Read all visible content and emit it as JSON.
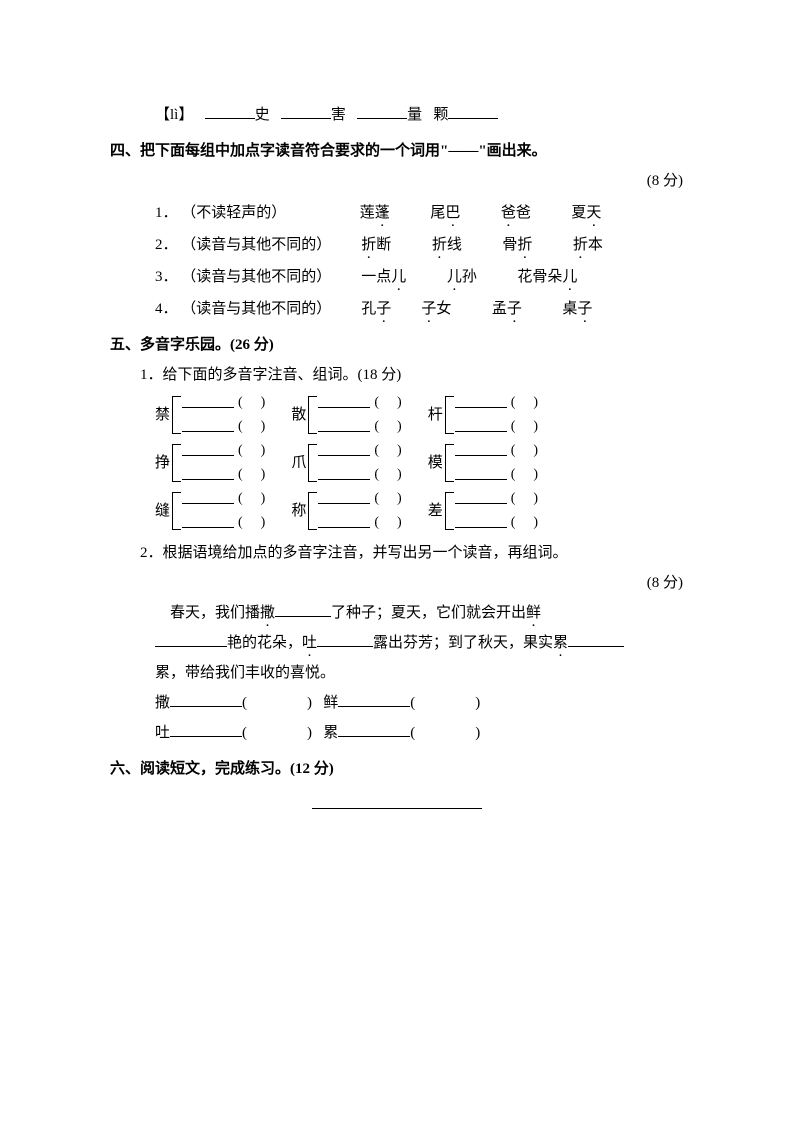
{
  "li_line": {
    "marker": "【lì】",
    "c1": "史",
    "c2": "害",
    "c3": "量",
    "c4": "颗"
  },
  "section4": {
    "title": "四、把下面每组中加点字读音符合要求的一个词用\"——\"画出来。",
    "points": "(8 分)",
    "rows": [
      {
        "num": "1．",
        "hint": "（不读轻声的）",
        "w1a": "莲",
        "w1b": "蓬",
        "w2a": "尾",
        "w2b": "巴",
        "w3a": "爸",
        "w3b": "爸",
        "w4a": "夏",
        "w4b": "天"
      },
      {
        "num": "2．",
        "hint": "（读音与其他不同的）",
        "w1a": "折",
        "w1b": "断",
        "w2a": "折",
        "w2b": "线",
        "w3a": "骨",
        "w3b": "折",
        "w4a": "折",
        "w4b": "本"
      },
      {
        "num": "3．",
        "hint": "（读音与其他不同的）",
        "w1a": "一点",
        "w1b": "儿",
        "w2a": "儿",
        "w2b": "孙",
        "w3a": "花骨朵",
        "w3b": "儿",
        "w4a": "",
        "w4b": ""
      },
      {
        "num": "4．",
        "hint": "（读音与其他不同的）",
        "w1a": "孔",
        "w1b": "子",
        "w2a": "子",
        "w2b": "女",
        "w3a": "孟",
        "w3b": "子",
        "w4a": "桌",
        "w4b": "子"
      }
    ]
  },
  "section5": {
    "title": "五、多音字乐园。(26 分)",
    "sub1": {
      "title": "1．给下面的多音字注音、组词。(18 分)"
    },
    "poly": {
      "row1": [
        "禁",
        "散",
        "杆"
      ],
      "row2": [
        "挣",
        "爪",
        "模"
      ],
      "row3": [
        "缝",
        "称",
        "差"
      ]
    },
    "sub2": {
      "title": "2．根据语境给加点的多音字注音，并写出另一个读音，再组词。",
      "points": "(8 分)",
      "para_parts": {
        "t1": "春天，我们播",
        "c1": "撒",
        "t2": "了种子；夏天，它们就会开出",
        "c2": "鲜",
        "t3": "艳的花朵，",
        "c3": "吐",
        "t4": "露出芬芳；到了秋天，果实",
        "c4a": "累",
        "t5": "累，带给我们丰收的喜悦。"
      },
      "fills": [
        {
          "char": "撒"
        },
        {
          "char": "鲜"
        },
        {
          "char": "吐"
        },
        {
          "char": "累"
        }
      ]
    }
  },
  "section6": {
    "title": "六、阅读短文，完成练习。(12 分)"
  }
}
